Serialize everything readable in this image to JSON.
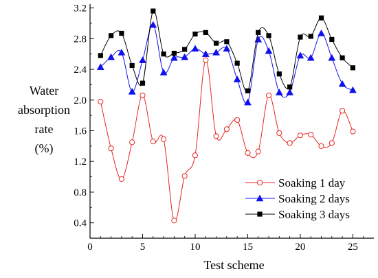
{
  "chart_data": {
    "type": "line",
    "xlabel": "Test scheme",
    "ylabel_lines": [
      "Water",
      "absorption",
      "rate",
      "(%)"
    ],
    "xlim": [
      0,
      27
    ],
    "ylim": [
      0.2,
      3.25
    ],
    "xticks": [
      0,
      5,
      10,
      15,
      20,
      25
    ],
    "yticks": [
      0.4,
      0.8,
      1.2,
      1.6,
      2.0,
      2.4,
      2.8,
      3.2
    ],
    "ytick_labels": [
      "0.4",
      "0.8",
      "1.2",
      "1.6",
      "2.0",
      "2.4",
      "2.8",
      "3.2"
    ],
    "grid": false,
    "legend_position": "bottom-right",
    "x": [
      1,
      2,
      3,
      4,
      5,
      6,
      7,
      8,
      9,
      10,
      11,
      12,
      13,
      14,
      15,
      16,
      17,
      18,
      19,
      20,
      21,
      22,
      23,
      24,
      25
    ],
    "series": [
      {
        "name": "Soaking 1 day",
        "color": "#e8251f",
        "marker": "open-circle",
        "values": [
          1.98,
          1.37,
          0.97,
          1.45,
          2.06,
          1.46,
          1.49,
          0.43,
          1.01,
          1.28,
          2.52,
          1.53,
          1.62,
          1.74,
          1.31,
          1.33,
          2.06,
          1.57,
          1.44,
          1.54,
          1.55,
          1.4,
          1.44,
          1.86,
          1.59
        ]
      },
      {
        "name": "Soaking 2 days",
        "color": "#1010ee",
        "marker": "filled-triangle",
        "values": [
          2.43,
          2.56,
          2.62,
          2.11,
          2.52,
          2.98,
          2.36,
          2.55,
          2.56,
          2.67,
          2.6,
          2.62,
          2.67,
          2.27,
          1.97,
          2.79,
          2.64,
          2.1,
          2.1,
          2.58,
          2.55,
          2.87,
          2.55,
          2.21,
          2.13
        ]
      },
      {
        "name": "Soaking 3 days",
        "color": "#000000",
        "marker": "filled-square",
        "values": [
          2.58,
          2.84,
          2.87,
          2.45,
          2.22,
          3.16,
          2.6,
          2.61,
          2.66,
          2.86,
          2.88,
          2.74,
          2.76,
          2.48,
          2.12,
          2.88,
          2.84,
          2.34,
          2.17,
          2.82,
          2.83,
          3.07,
          2.79,
          2.55,
          2.42
        ]
      }
    ]
  }
}
